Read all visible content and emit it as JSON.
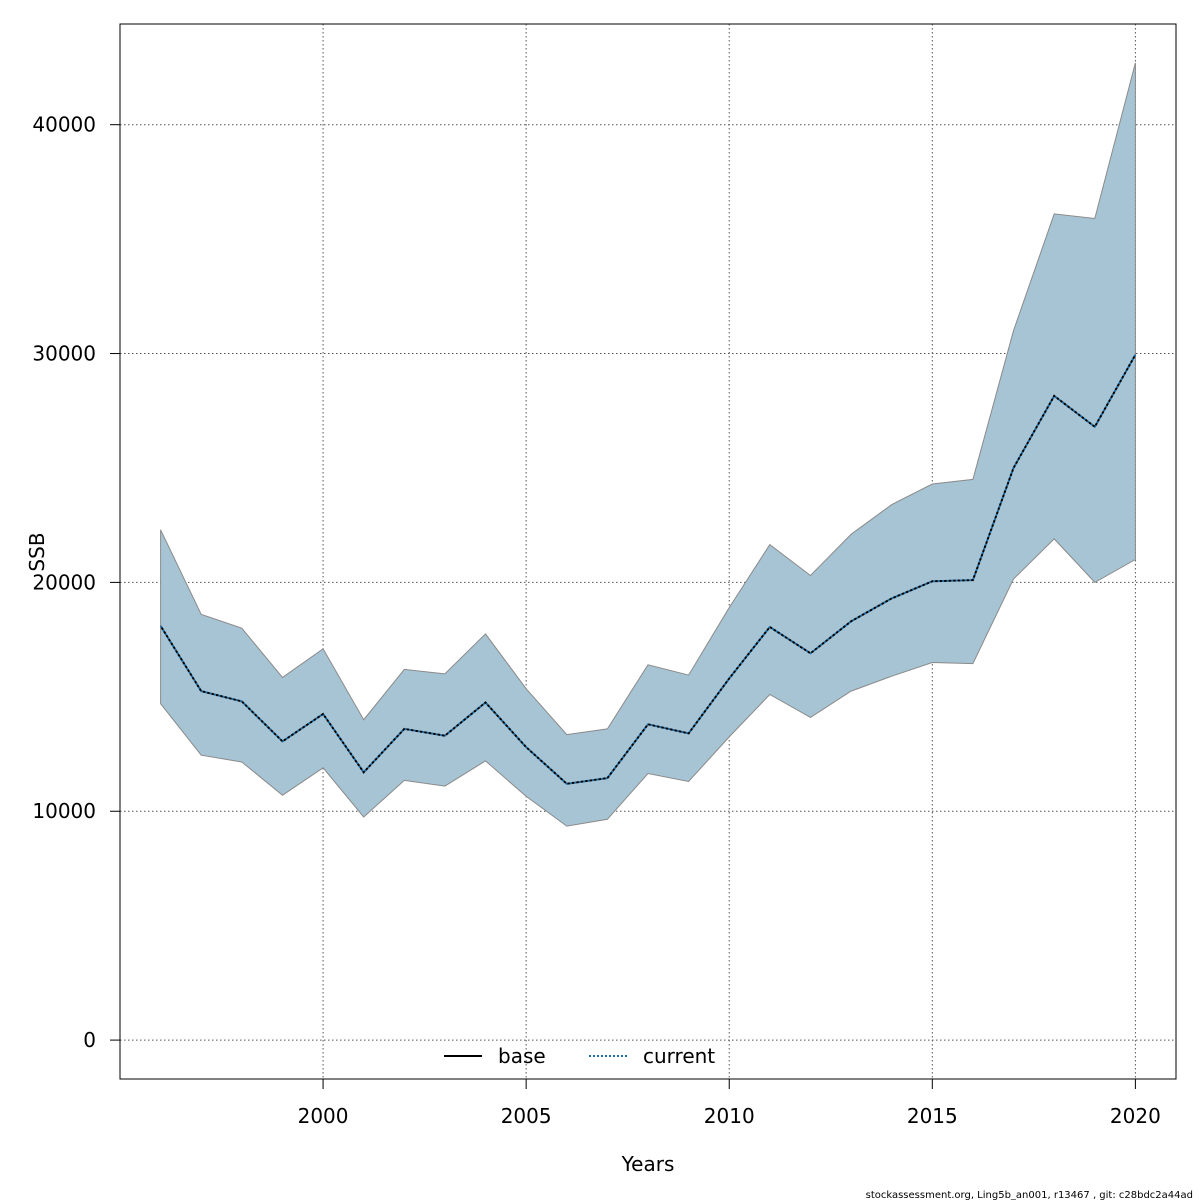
{
  "chart_data": {
    "type": "area",
    "xlabel": "Years",
    "ylabel": "SSB",
    "xlim": [
      1995,
      2021
    ],
    "ylim": [
      -1700,
      44400
    ],
    "x_ticks": [
      2000,
      2005,
      2010,
      2015,
      2020
    ],
    "y_ticks": [
      0,
      10000,
      20000,
      30000,
      40000
    ],
    "grid": true,
    "legend_position": "bottom-center",
    "x": [
      1996,
      1997,
      1998,
      1999,
      2000,
      2001,
      2002,
      2003,
      2004,
      2005,
      2006,
      2007,
      2008,
      2009,
      2010,
      2011,
      2012,
      2013,
      2014,
      2015,
      2016,
      2017,
      2018,
      2019,
      2020
    ],
    "band": {
      "upper": [
        22300,
        18600,
        18000,
        15850,
        17100,
        14000,
        16200,
        16000,
        17750,
        15350,
        13350,
        13600,
        16400,
        15950,
        18900,
        21650,
        20300,
        22100,
        23400,
        24300,
        24500,
        31000,
        36100,
        35900,
        42700
      ],
      "lower": [
        14700,
        12450,
        12150,
        10700,
        11900,
        9750,
        11350,
        11100,
        12200,
        10650,
        9350,
        9650,
        11650,
        11300,
        13250,
        15100,
        14100,
        15250,
        15900,
        16500,
        16450,
        20150,
        21900,
        20000,
        21000
      ],
      "fill_color": "#a6c4d4",
      "edge_color": "#8a8a8a"
    },
    "series": [
      {
        "name": "base",
        "values": [
          18100,
          15250,
          14800,
          13050,
          14250,
          11700,
          13600,
          13300,
          14750,
          12800,
          11200,
          11450,
          13800,
          13400,
          15800,
          18050,
          16900,
          18300,
          19300,
          20050,
          20100,
          25000,
          28150,
          26800,
          29950
        ],
        "color": "#000000",
        "style": "solid"
      },
      {
        "name": "current",
        "values": [
          18100,
          15250,
          14800,
          13050,
          14250,
          11700,
          13600,
          13300,
          14750,
          12800,
          11200,
          11450,
          13800,
          13400,
          15800,
          18050,
          16900,
          18300,
          19300,
          20050,
          20100,
          25000,
          28150,
          26800,
          29950
        ],
        "color": "#1f6fa8",
        "style": "dotted"
      }
    ]
  },
  "footer": "stockassessment.org, Ling5b_an001, r13467 , git: c28bdc2a44ad"
}
